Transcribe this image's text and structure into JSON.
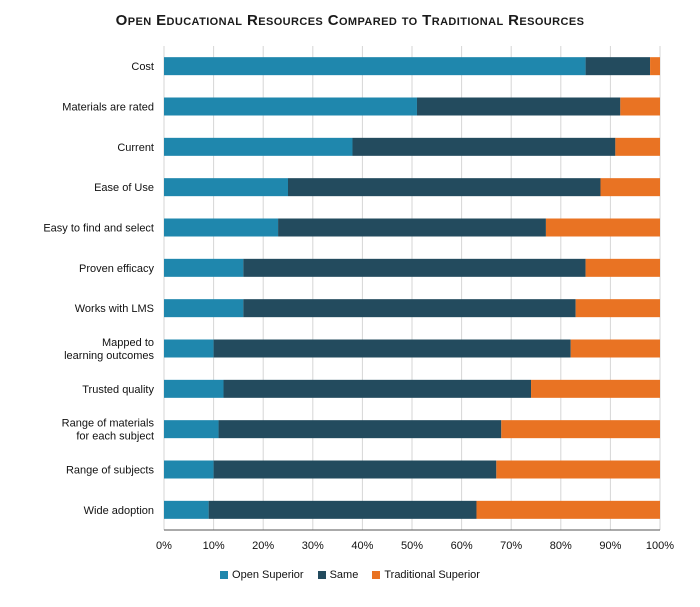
{
  "chart_data": {
    "type": "bar",
    "orientation": "horizontal",
    "stacked": true,
    "title": "Open Educational Resources Compared to Traditional Resources",
    "categories": [
      "Cost",
      "Materials are rated",
      "Current",
      "Ease of Use",
      "Easy to find and select",
      "Proven efficacy",
      "Works with LMS",
      "Mapped to learning outcomes",
      "Trusted quality",
      "Range of materials for each subject",
      "Range of subjects",
      "Wide adoption"
    ],
    "series": [
      {
        "name": "Open Superior",
        "color": "#1f87ad",
        "values": [
          85,
          51,
          38,
          25,
          23,
          16,
          16,
          10,
          12,
          11,
          10,
          9
        ]
      },
      {
        "name": "Same",
        "color": "#234b5e",
        "values": [
          13,
          41,
          53,
          63,
          54,
          69,
          67,
          72,
          62,
          57,
          57,
          54
        ]
      },
      {
        "name": "Traditional Superior",
        "color": "#e97323",
        "values": [
          2,
          8,
          9,
          12,
          23,
          15,
          17,
          18,
          26,
          32,
          33,
          37
        ]
      }
    ],
    "xlim": [
      0,
      100
    ],
    "x_ticks": [
      "0%",
      "10%",
      "20%",
      "30%",
      "40%",
      "50%",
      "60%",
      "70%",
      "80%",
      "90%",
      "100%"
    ],
    "grid": true,
    "legend_position": "bottom"
  }
}
